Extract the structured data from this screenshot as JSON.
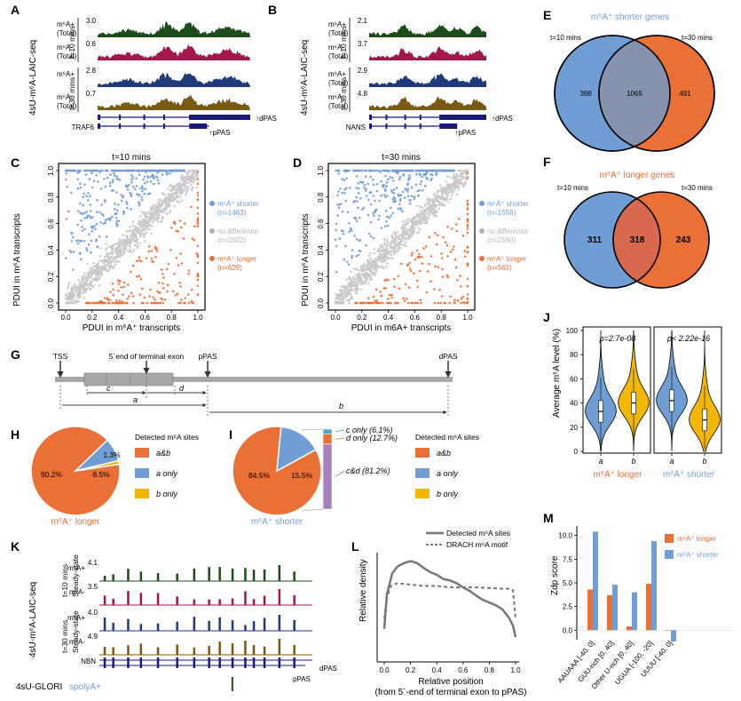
{
  "colors": {
    "dark_green": "#1b4d1a",
    "crimson": "#a3164c",
    "navy": "#1e3a7a",
    "brown": "#7a5a12",
    "orange": "#ea7035",
    "blue": "#6f9ed4",
    "grey": "#c8c8c8",
    "gold": "#f2b705",
    "purple": "#a77fbf",
    "gene": "#1a1a7a"
  },
  "panels": {
    "A": "A",
    "B": "B",
    "C": "C",
    "D": "D",
    "E": "E",
    "F": "F",
    "G": "G",
    "H": "H",
    "I": "I",
    "J": "J",
    "K": "K",
    "L": "L",
    "M": "M"
  },
  "A": {
    "side_label": "4sU-m⁶A-LAIC-seq",
    "t10": "t=10 mins",
    "t30": "t=30 mins",
    "tracks": [
      {
        "l1": "m⁶A+",
        "l2": "(Total)",
        "max": "3.0"
      },
      {
        "l1": "m⁶A-",
        "l2": "(Total)",
        "max": "0.6"
      },
      {
        "l1": "m⁶A+",
        "l2": "",
        "max": "2.8"
      },
      {
        "l1": "m⁶A-",
        "l2": "(Total)",
        "max": "0.7"
      }
    ],
    "gene": "TRAF6",
    "ppas": "pPAS",
    "dpas": "dPAS"
  },
  "B": {
    "side_label": "4sU-m⁶A-LAIC-seq",
    "t10": "t=10 mins",
    "t30": "t=30 mins",
    "tracks": [
      {
        "l1": "m⁶A+",
        "l2": "(Total)",
        "max": "2.1"
      },
      {
        "l1": "m⁶A-",
        "l2": "(Total)",
        "max": "3.7"
      },
      {
        "l1": "m⁶A+",
        "l2": "(Total)",
        "max": "2.9"
      },
      {
        "l1": "m⁶A-",
        "l2": "(Total)",
        "max": "4.8"
      }
    ],
    "gene": "NANS",
    "ppas": "pPAS",
    "dpas": "dPAS"
  },
  "C": {
    "title": "t=10 mins",
    "xlabel": "PDUI in m⁶A⁺ transcripts",
    "ylabel": "PDUI in m⁶A transcripts",
    "legend": [
      {
        "l1": "m⁶A⁺ shorter",
        "l2": "(n=1463)",
        "color": "#6f9ed4"
      },
      {
        "l1": "no difference",
        "l2": "(n=2602)",
        "color": "#b5b5b5"
      },
      {
        "l1": "m⁶A⁺ longer",
        "l2": "(n=629)",
        "color": "#ea7035"
      }
    ]
  },
  "D": {
    "title": "t=30 mins",
    "xlabel": "PDUI in m6A+ transcripts",
    "ylabel": "PDUI in m⁶A transcripts",
    "legend": [
      {
        "l1": "m⁶A⁺ shorter",
        "l2": "(n=1556)",
        "color": "#6f9ed4"
      },
      {
        "l1": "no difference",
        "l2": "(n=2560)",
        "color": "#b5b5b5"
      },
      {
        "l1": "m⁶A⁺ longer",
        "l2": "(n=561)",
        "color": "#ea7035"
      }
    ]
  },
  "E": {
    "title": "m⁶A⁺ shorter genes",
    "left": "t=10 mins",
    "right": "t=30 mins",
    "a": "398",
    "ab": "1065",
    "b": "491"
  },
  "F": {
    "title": "m⁶A⁺ longer genes",
    "left": "t=10 mins",
    "right": "t=30 mins",
    "a": "311",
    "ab": "318",
    "b": "243"
  },
  "G": {
    "tss": "TSS",
    "terminal": "5´end of terminal exon",
    "ppas": "pPAS",
    "dpas": "dPAS",
    "c": "c",
    "d": "d",
    "a": "a",
    "b": "b"
  },
  "H": {
    "slices": [
      {
        "label": "a&b",
        "value": 90.2,
        "text": "90.2%"
      },
      {
        "label": "a only",
        "value": 8.5,
        "text": "8.5%"
      },
      {
        "label": "b only",
        "value": 1.3,
        "text": "1.3%"
      }
    ],
    "legend_title": "Detected m⁶A sites",
    "caption": "m⁶A⁺ longer"
  },
  "I": {
    "slices": [
      {
        "label": "a&b",
        "value": 84.5,
        "text": "84.5%"
      },
      {
        "label": "a only",
        "value": 15.5,
        "text": "15.5%"
      }
    ],
    "bar": [
      {
        "label": "c only (6.1%)",
        "value": 6.1
      },
      {
        "label": "d only (12.7%)",
        "value": 12.7
      },
      {
        "label": "c&d (81.2%)",
        "value": 81.2
      }
    ],
    "legend_title": "Detected m⁶A sites",
    "legend": [
      "a&b",
      "a only",
      "b only"
    ],
    "caption": "m⁶A⁺ shorter"
  },
  "J": {
    "ylabel": "Average m⁶A level (%)",
    "ticks": [
      "0",
      "20",
      "40",
      "60",
      "80",
      "100"
    ],
    "p1": "p=2.7e-08",
    "p2": "p< 2.22e-16",
    "xa": "a",
    "xb": "b",
    "cap1": "m⁶A⁺ longer",
    "cap2": "m⁶A⁺ shorter"
  },
  "K": {
    "side_label": "4sU-m⁶A-LAIC-seq",
    "t10": "t=10 mins",
    "t30": "t=30 mins",
    "steady": "Steady-state",
    "tracks": [
      {
        "label": "m⁶A+",
        "max": "4.1"
      },
      {
        "label": "m⁶A-",
        "max": "3.5"
      },
      {
        "label": "m⁶A+",
        "max": "4.0"
      },
      {
        "label": "m⁶A-",
        "max": "4.9"
      }
    ],
    "gene": "NBN",
    "ppas": "pPAS",
    "dpas": "dPAS",
    "glori": "4sU-GLORI",
    "glori2": "spolyA+"
  },
  "L": {
    "legend1": "Detected m⁶A sites",
    "legend2": "DRACH m⁶A motif",
    "ylabel": "Relative density",
    "xlabel1": "Relative position",
    "xlabel2": "(from 5´-end of terminal exon to pPAS)",
    "xticks": [
      "0.0",
      "0.2",
      "0.4",
      "0.6",
      "0.8",
      "1.0"
    ]
  },
  "M": {
    "ylabel": "Zdp score",
    "yticks": [
      "0.0",
      "2.5",
      "5.0",
      "7.5",
      "10.0"
    ],
    "legend": [
      {
        "label": "m⁶A⁺ longer",
        "color": "#ea7035"
      },
      {
        "label": "m⁶A⁺ shorter",
        "color": "#6f9ed4"
      }
    ]
  },
  "chart_data": [
    {
      "panel": "C",
      "type": "scatter",
      "title": "t=10 mins",
      "xlabel": "PDUI in m⁶A⁺ transcripts",
      "ylabel": "PDUI in m⁶A transcripts",
      "xlim": [
        0,
        1
      ],
      "ylim": [
        0,
        1
      ],
      "series": [
        {
          "name": "m⁶A⁺ shorter",
          "n": 1463
        },
        {
          "name": "no difference",
          "n": 2602
        },
        {
          "name": "m⁶A⁺ longer",
          "n": 629
        }
      ]
    },
    {
      "panel": "D",
      "type": "scatter",
      "title": "t=30 mins",
      "xlabel": "PDUI in m6A+ transcripts",
      "ylabel": "PDUI in m⁶A transcripts",
      "xlim": [
        0,
        1
      ],
      "ylim": [
        0,
        1
      ],
      "series": [
        {
          "name": "m⁶A⁺ shorter",
          "n": 1556
        },
        {
          "name": "no difference",
          "n": 2560
        },
        {
          "name": "m⁶A⁺ longer",
          "n": 561
        }
      ]
    },
    {
      "panel": "H",
      "type": "pie",
      "slices": [
        {
          "name": "a&b",
          "value": 90.2
        },
        {
          "name": "a only",
          "value": 8.5
        },
        {
          "name": "b only",
          "value": 1.3
        }
      ]
    },
    {
      "panel": "I",
      "type": "pie",
      "slices": [
        {
          "name": "a&b",
          "value": 84.5
        },
        {
          "name": "a only",
          "value": 15.5
        }
      ]
    },
    {
      "panel": "J",
      "type": "violin",
      "ylim": [
        0,
        100
      ],
      "groups": [
        {
          "group": "m⁶A⁺ longer",
          "cat": "a",
          "median": 33
        },
        {
          "group": "m⁶A⁺ longer",
          "cat": "b",
          "median": 40
        },
        {
          "group": "m⁶A⁺ shorter",
          "cat": "a",
          "median": 42
        },
        {
          "group": "m⁶A⁺ shorter",
          "cat": "b",
          "median": 26
        }
      ]
    },
    {
      "panel": "L",
      "type": "line",
      "xlim": [
        0,
        1
      ],
      "series": [
        {
          "name": "Detected m⁶A sites",
          "x": [
            0,
            0.02,
            0.06,
            0.1,
            0.15,
            0.2,
            0.25,
            0.3,
            0.35,
            0.4,
            0.45,
            0.5,
            0.55,
            0.6,
            0.65,
            0.7,
            0.75,
            0.8,
            0.85,
            0.9,
            0.95,
            0.98,
            1.0
          ],
          "y": [
            0.4,
            0.9,
            1.2,
            1.3,
            1.35,
            1.38,
            1.35,
            1.28,
            1.22,
            1.18,
            1.12,
            1.1,
            1.06,
            1.0,
            0.95,
            0.88,
            0.82,
            0.78,
            0.74,
            0.68,
            0.56,
            0.45,
            0.28
          ]
        },
        {
          "name": "DRACH m⁶A motif",
          "x": [
            0,
            0.02,
            0.05,
            0.1,
            0.2,
            0.3,
            0.4,
            0.5,
            0.6,
            0.7,
            0.8,
            0.9,
            0.95,
            0.98,
            1.0
          ],
          "y": [
            0.55,
            0.85,
            1.02,
            1.06,
            1.04,
            1.02,
            1.02,
            1.0,
            1.0,
            1.0,
            0.99,
            0.98,
            0.98,
            0.96,
            0.55
          ]
        }
      ]
    },
    {
      "panel": "M",
      "type": "bar",
      "ylabel": "Zdp score",
      "ylim": [
        -1,
        11
      ],
      "categories": [
        "AAUAAA [-40, 0]",
        "GUU-rich [0, 40]",
        "Other U-rich [0, 40]",
        "UGUA [-100, -20]",
        "UUUU [-40, 0]"
      ],
      "series": [
        {
          "name": "m⁶A⁺ longer",
          "values": [
            4.3,
            3.7,
            0.4,
            4.9,
            0.0
          ]
        },
        {
          "name": "m⁶A⁺ shorter",
          "values": [
            10.4,
            4.8,
            4.0,
            9.4,
            -1.2
          ]
        }
      ]
    }
  ]
}
